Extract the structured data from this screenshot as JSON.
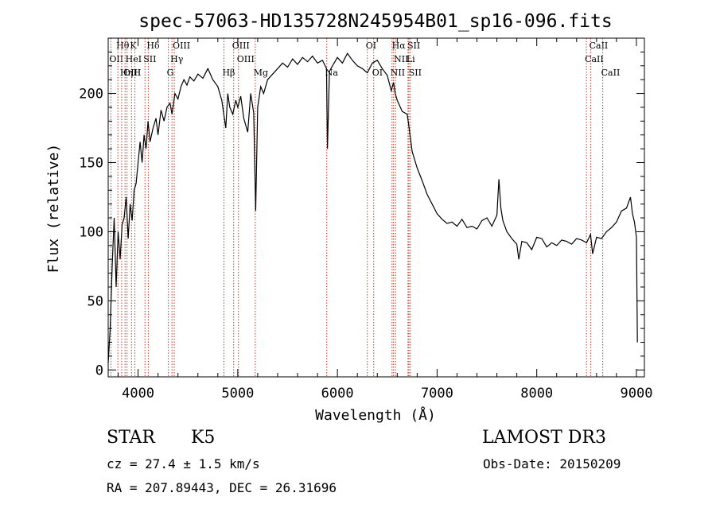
{
  "chart_data": {
    "type": "line",
    "title": "spec-57063-HD135728N245954B01_sp16-096.fits",
    "xlabel": "Wavelength (Å)",
    "ylabel": "Flux (relative)",
    "xlim": [
      3700,
      9080
    ],
    "ylim": [
      -5,
      240
    ],
    "xticks": [
      4000,
      5000,
      6000,
      7000,
      8000,
      9000
    ],
    "yticks": [
      0,
      50,
      100,
      150,
      200
    ],
    "grid": false,
    "line_color": "#000000",
    "series": [
      {
        "x": [
          3700,
          3720,
          3740,
          3760,
          3780,
          3800,
          3820,
          3840,
          3860,
          3880,
          3900,
          3920,
          3940,
          3960,
          3980,
          4000,
          4020,
          4040,
          4060,
          4080,
          4100,
          4120,
          4150,
          4180,
          4200,
          4230,
          4260,
          4290,
          4320,
          4340,
          4370,
          4400,
          4430,
          4460,
          4490,
          4520,
          4560,
          4600,
          4650,
          4700,
          4750,
          4800,
          4840,
          4860,
          4880,
          4900,
          4920,
          4950,
          4980,
          5000,
          5030,
          5060,
          5100,
          5130,
          5160,
          5180,
          5200,
          5230,
          5260,
          5300,
          5350,
          5400,
          5450,
          5500,
          5550,
          5600,
          5650,
          5700,
          5750,
          5800,
          5850,
          5890,
          5900,
          5920,
          5950,
          6000,
          6050,
          6100,
          6150,
          6200,
          6250,
          6300,
          6350,
          6400,
          6450,
          6500,
          6540,
          6563,
          6580,
          6600,
          6650,
          6700,
          6720,
          6750,
          6800,
          6850,
          6900,
          6950,
          7000,
          7050,
          7100,
          7150,
          7200,
          7250,
          7300,
          7350,
          7400,
          7450,
          7500,
          7550,
          7600,
          7620,
          7640,
          7660,
          7700,
          7750,
          7800,
          7820,
          7850,
          7900,
          7950,
          8000,
          8050,
          8100,
          8150,
          8200,
          8250,
          8300,
          8350,
          8400,
          8450,
          8500,
          8540,
          8560,
          8600,
          8650,
          8700,
          8750,
          8800,
          8850,
          8900,
          8940,
          8960,
          8980,
          9000,
          9010
        ],
        "values": [
          5,
          30,
          75,
          110,
          60,
          100,
          80,
          105,
          110,
          125,
          95,
          120,
          108,
          130,
          135,
          150,
          165,
          150,
          170,
          160,
          180,
          165,
          175,
          182,
          170,
          188,
          180,
          190,
          193,
          185,
          200,
          196,
          205,
          210,
          206,
          212,
          209,
          214,
          211,
          218,
          210,
          205,
          195,
          185,
          175,
          200,
          190,
          185,
          195,
          190,
          198,
          182,
          172,
          200,
          186,
          115,
          190,
          205,
          200,
          210,
          214,
          218,
          222,
          219,
          225,
          221,
          226,
          223,
          227,
          222,
          224,
          218,
          160,
          216,
          220,
          226,
          222,
          229,
          224,
          220,
          218,
          215,
          222,
          224,
          218,
          213,
          202,
          208,
          200,
          195,
          187,
          185,
          175,
          158,
          146,
          137,
          127,
          120,
          113,
          109,
          106,
          107,
          104,
          109,
          103,
          104,
          102,
          108,
          110,
          104,
          112,
          138,
          117,
          108,
          100,
          95,
          91,
          80,
          93,
          92,
          87,
          96,
          95,
          89,
          92,
          90,
          94,
          93,
          91,
          95,
          94,
          92,
          98,
          84,
          96,
          95,
          100,
          103,
          107,
          115,
          117,
          125,
          113,
          107,
          96,
          20
        ]
      }
    ],
    "spectral_lines": [
      {
        "label": "Hθ",
        "x": 3797,
        "row": 1
      },
      {
        "label": "K",
        "x": 3934,
        "row": 1
      },
      {
        "label": "Hδ",
        "x": 4102,
        "row": 1
      },
      {
        "label": "OIII",
        "x": 4363,
        "row": 1
      },
      {
        "label": "OIII",
        "x": 4959,
        "row": 1
      },
      {
        "label": "OI",
        "x": 6300,
        "row": 1
      },
      {
        "label": "Hα",
        "x": 6563,
        "row": 1
      },
      {
        "label": "SII",
        "x": 6717,
        "row": 1
      },
      {
        "label": "CaII",
        "x": 8542,
        "row": 1
      },
      {
        "label": "OII",
        "x": 3727,
        "row": 2
      },
      {
        "label": "HeI",
        "x": 3889,
        "row": 2
      },
      {
        "label": "SII",
        "x": 4069,
        "row": 2
      },
      {
        "label": "Hγ",
        "x": 4340,
        "row": 2
      },
      {
        "label": "OIII",
        "x": 5007,
        "row": 2
      },
      {
        "label": "NII",
        "x": 6583,
        "row": 2
      },
      {
        "label": "Li",
        "x": 6708,
        "row": 2
      },
      {
        "label": "CaII",
        "x": 8498,
        "row": 2
      },
      {
        "label": "OIII",
        "x": 3869,
        "row": 3
      },
      {
        "label": "Hη",
        "x": 3835,
        "row": 3
      },
      {
        "label": "H",
        "x": 3968,
        "row": 3
      },
      {
        "label": "G",
        "x": 4304,
        "row": 3
      },
      {
        "label": "Hβ",
        "x": 4861,
        "row": 3
      },
      {
        "label": "Mg",
        "x": 5175,
        "row": 3
      },
      {
        "label": "Na",
        "x": 5893,
        "row": 3
      },
      {
        "label": "OI",
        "x": 6364,
        "row": 3
      },
      {
        "label": "NII",
        "x": 6548,
        "row": 3
      },
      {
        "label": "SII",
        "x": 6731,
        "row": 3
      },
      {
        "label": "CaII",
        "x": 8662,
        "row": 3
      }
    ]
  },
  "info": {
    "class": "STAR",
    "subclass": "K5",
    "survey": "LAMOST DR3",
    "cz": "cz = 27.4 ± 1.5 km/s",
    "obs_date": "Obs-Date: 20150209",
    "coords": "RA = 207.89443, DEC =  26.31696"
  }
}
